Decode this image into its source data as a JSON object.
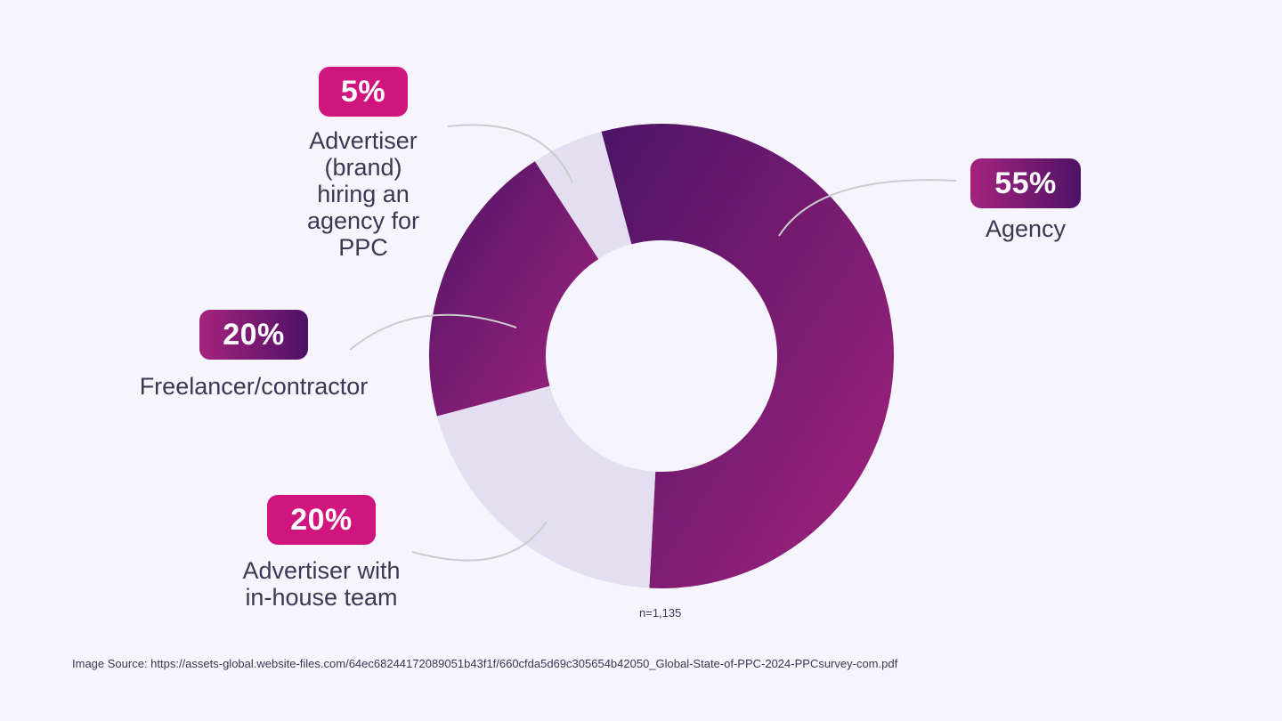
{
  "chart_data": {
    "type": "donut",
    "categories": [
      "Agency",
      "Advertiser with in-house team",
      "Freelancer/contractor",
      "Advertiser (brand) hiring an agency for PPC"
    ],
    "values": [
      55,
      20,
      20,
      5
    ],
    "percent_labels": [
      "55%",
      "20%",
      "20%",
      "5%"
    ],
    "sample_note": "n=1,135",
    "colors": {
      "agency_start": "#4d1466",
      "agency_end": "#a3237e",
      "light_slice": "#e3dff0",
      "freelancer_start": "#4d1466",
      "freelancer_end": "#a3237e",
      "badge_pink": "#d0157f",
      "leader_line": "#cccccc"
    }
  },
  "labels": {
    "agency_pct": "55%",
    "agency_name": "Agency",
    "brand_pct": "5%",
    "brand_name_lines": [
      "Advertiser",
      "(brand)",
      "hiring an",
      "agency for",
      "PPC"
    ],
    "freelancer_pct": "20%",
    "freelancer_name": "Freelancer/contractor",
    "inhouse_pct": "20%",
    "inhouse_name_lines": [
      "Advertiser with",
      "in-house team"
    ]
  },
  "sample_note": "n=1,135",
  "source": "Image Source: https://assets-global.website-files.com/64ec68244172089051b43f1f/660cfda5d69c305654b42050_Global-State-of-PPC-2024-PPCsurvey-com.pdf"
}
